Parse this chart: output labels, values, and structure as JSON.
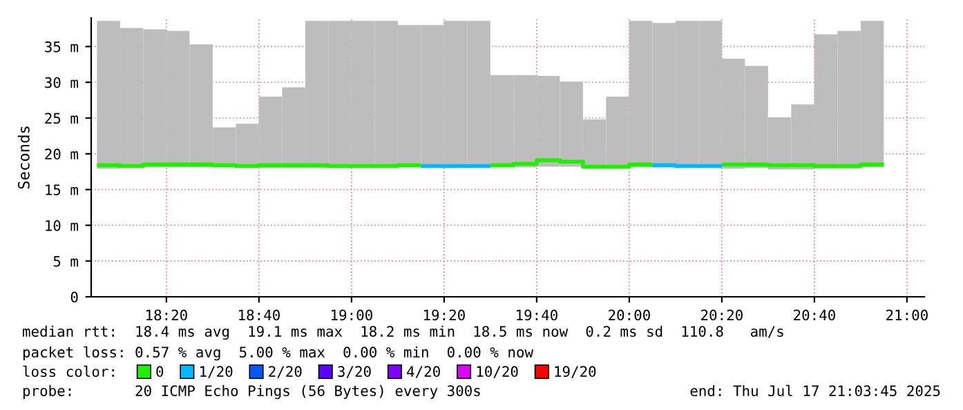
{
  "chart_data": {
    "type": "bar",
    "color": "#bdbdbd",
    "ylabel": "Seconds",
    "legend_title": "loss color:",
    "xlim": [
      18.0625,
      21.0625
    ],
    "ylim": [
      0,
      39
    ],
    "xticks": [
      {
        "value": 18.3333,
        "label": "18:20"
      },
      {
        "value": 18.6667,
        "label": "18:40"
      },
      {
        "value": 19,
        "label": "19:00"
      },
      {
        "value": 19.3333,
        "label": "19:20"
      },
      {
        "value": 19.6667,
        "label": "19:40"
      },
      {
        "value": 20,
        "label": "20:00"
      },
      {
        "value": 20.3333,
        "label": "20:20"
      },
      {
        "value": 20.6667,
        "label": "20:40"
      },
      {
        "value": 21,
        "label": "21:00"
      }
    ],
    "yticks": [
      0,
      {
        "value": 5,
        "label": "5 m"
      },
      {
        "value": 10,
        "label": "10 m"
      },
      {
        "value": 15,
        "label": "15 m"
      },
      {
        "value": 20,
        "label": "20 m"
      },
      {
        "value": 25,
        "label": "25 m"
      },
      {
        "value": 30,
        "label": "30 m"
      },
      {
        "value": 35,
        "label": "35 m"
      }
    ],
    "grid": true,
    "legend": "bottom",
    "x": [
      18.125,
      18.2083,
      18.2917,
      18.375,
      18.4583,
      18.5417,
      18.625,
      18.7083,
      18.7917,
      18.875,
      18.9583,
      19.0417,
      19.125,
      19.2083,
      19.2917,
      19.375,
      19.4583,
      19.5417,
      19.625,
      19.7083,
      19.7917,
      19.875,
      19.9583,
      20.0417,
      20.125,
      20.2083,
      20.2917,
      20.375,
      20.4583,
      20.5417,
      20.625,
      20.7083,
      20.7917,
      20.875
    ],
    "base": [
      17.9,
      18.2,
      18.1,
      18.1,
      18.1,
      18.1,
      18.1,
      18.0,
      18.0,
      18.0,
      18.0,
      18.1,
      18.1,
      18.1,
      18.0,
      18.0,
      18.0,
      18.1,
      18.1,
      18.2,
      18.2,
      17.9,
      17.9,
      18.1,
      18.1,
      18.0,
      18.0,
      17.9,
      18.0,
      17.8,
      17.8,
      17.9,
      17.9,
      18.1
    ],
    "values": [
      20.7,
      19.4,
      19.3,
      19.1,
      17.2,
      5.6,
      6.1,
      10.0,
      11.3,
      20.6,
      20.6,
      20.5,
      20.5,
      19.9,
      20.0,
      20.6,
      20.6,
      12.9,
      12.9,
      12.7,
      11.9,
      6.9,
      10.1,
      20.5,
      20.2,
      20.6,
      20.6,
      15.4,
      14.3,
      7.3,
      9.1,
      18.8,
      19.3,
      20.5
    ],
    "series": [
      {
        "type": "line",
        "name": "0",
        "color": "#20f000",
        "x": [
          18.0833,
          18.1667,
          18.1667,
          18.25,
          18.25,
          18.5,
          18.5,
          18.5833,
          18.5833,
          18.6667,
          18.6667,
          18.9167,
          18.9167,
          19.1667,
          19.1667,
          19.25,
          19.3333,
          19.5,
          19.5833,
          19.5833,
          19.6667,
          19.6667,
          19.75,
          19.75,
          19.8333,
          19.8333,
          20,
          20,
          20.0833,
          20.1667,
          20.3333,
          20.5,
          20.5,
          20.6667,
          20.6667,
          20.8333,
          20.8333,
          20.9167
        ],
        "values": [
          18.4,
          18.4,
          18.3,
          18.3,
          18.5,
          18.5,
          18.4,
          18.4,
          18.3,
          18.3,
          18.4,
          18.4,
          18.3,
          18.3,
          18.4,
          18.4,
          null,
          18.4,
          18.4,
          18.6,
          18.6,
          19.1,
          19.1,
          18.9,
          18.9,
          18.2,
          18.2,
          18.5,
          18.5,
          null,
          18.5,
          18.5,
          18.4,
          18.4,
          18.3,
          18.3,
          18.5,
          18.5
        ]
      },
      {
        "type": "line",
        "name": "1/20",
        "color": "#00b8ff",
        "x": [
          19.25,
          19.5,
          19.75,
          20.0833,
          20.1667,
          20.1667,
          20.3333
        ],
        "values": [
          18.3,
          18.3,
          null,
          18.4,
          18.4,
          18.3,
          18.3
        ]
      },
      {
        "name": "2/20",
        "color": "#0059ff",
        "values": [
          null,
          null,
          null,
          null,
          null,
          null,
          null,
          null,
          null,
          null,
          null,
          null,
          null,
          null,
          null,
          null,
          null,
          null,
          null,
          null,
          null,
          null,
          null,
          null,
          null,
          null,
          null,
          null,
          null,
          null,
          null,
          null,
          null,
          null
        ]
      },
      {
        "name": "3/20",
        "color": "#5e00ff",
        "values": [
          null,
          null,
          null,
          null,
          null,
          null,
          null,
          null,
          null,
          null,
          null,
          null,
          null,
          null,
          null,
          null,
          null,
          null,
          null,
          null,
          null,
          null,
          null,
          null,
          null,
          null,
          null,
          null,
          null,
          null,
          null,
          null,
          null,
          null
        ]
      },
      {
        "name": "4/20",
        "color": "#7e00ff",
        "values": [
          null,
          null,
          null,
          null,
          null,
          null,
          null,
          null,
          null,
          null,
          null,
          null,
          null,
          null,
          null,
          null,
          null,
          null,
          null,
          null,
          null,
          null,
          null,
          null,
          null,
          null,
          null,
          null,
          null,
          null,
          null,
          null,
          null,
          null
        ]
      },
      {
        "name": "10/20",
        "color": "#dd00ff",
        "values": [
          null,
          null,
          null,
          null,
          null,
          null,
          null,
          null,
          null,
          null,
          null,
          null,
          null,
          null,
          null,
          null,
          null,
          null,
          null,
          null,
          null,
          null,
          null,
          null,
          null,
          null,
          null,
          null,
          null,
          null,
          null,
          null,
          null,
          null
        ]
      },
      {
        "name": "19/20",
        "color": "#ff0000",
        "values": [
          null,
          null,
          null,
          null,
          null,
          null,
          null,
          null,
          null,
          null,
          null,
          null,
          null,
          null,
          null,
          null,
          null,
          null,
          null,
          null,
          null,
          null,
          null,
          null,
          null,
          null,
          null,
          null,
          null,
          null,
          null,
          null,
          null,
          null
        ]
      }
    ],
    "annotations": [
      "median rtt:  18.4 ms avg  19.1 ms max  18.2 ms min  18.5 ms now  0.2 ms sd  110.8   am/s",
      "packet loss: 0.57 % avg  5.00 % max  0.00 % min  0.00 % now",
      "probe:       20 ICMP Echo Pings (56 Bytes) every 300s",
      "end: Thu Jul 17 21:03:45 2025"
    ]
  }
}
